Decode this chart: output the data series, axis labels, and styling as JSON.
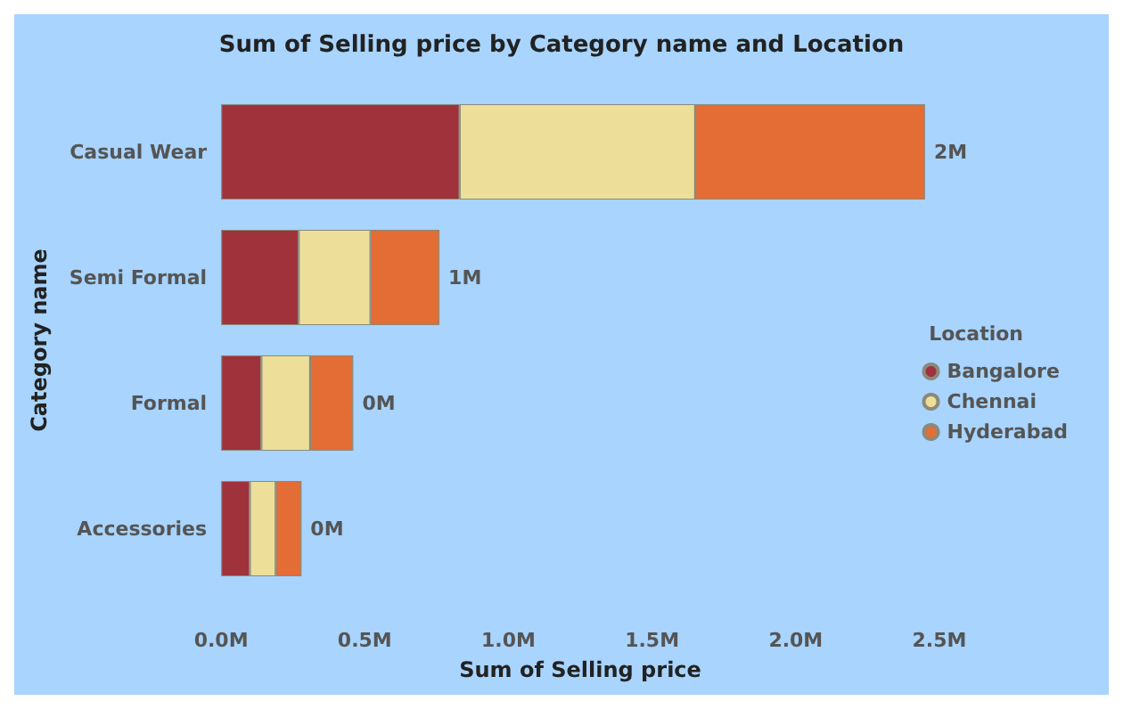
{
  "chart_data": {
    "type": "bar",
    "orientation": "horizontal",
    "stacked": true,
    "title": "Sum of Selling price by Category name and Location",
    "xlabel": "Sum of Selling price",
    "ylabel": "Category name",
    "legend_title": "Location",
    "legend": "right",
    "categories": [
      "Casual Wear",
      "Semi Formal",
      "Formal",
      "Accessories"
    ],
    "series": [
      {
        "name": "Bangalore",
        "color": "#a0323c",
        "values": [
          830000,
          270000,
          140000,
          100000
        ]
      },
      {
        "name": "Chennai",
        "color": "#eddf9a",
        "values": [
          820000,
          250000,
          170000,
          90000
        ]
      },
      {
        "name": "Hyderabad",
        "color": "#e46c35",
        "values": [
          800000,
          240000,
          150000,
          90000
        ]
      }
    ],
    "totals": [
      "2M",
      "1M",
      "0M",
      "0M"
    ],
    "xlim": [
      0,
      2500000
    ],
    "xticks": [
      {
        "value": 0,
        "label": "0.0M"
      },
      {
        "value": 500000,
        "label": "0.5M"
      },
      {
        "value": 1000000,
        "label": "1.0M"
      },
      {
        "value": 1500000,
        "label": "1.5M"
      },
      {
        "value": 2000000,
        "label": "2.0M"
      },
      {
        "value": 2500000,
        "label": "2.5M"
      }
    ],
    "grid": false
  }
}
